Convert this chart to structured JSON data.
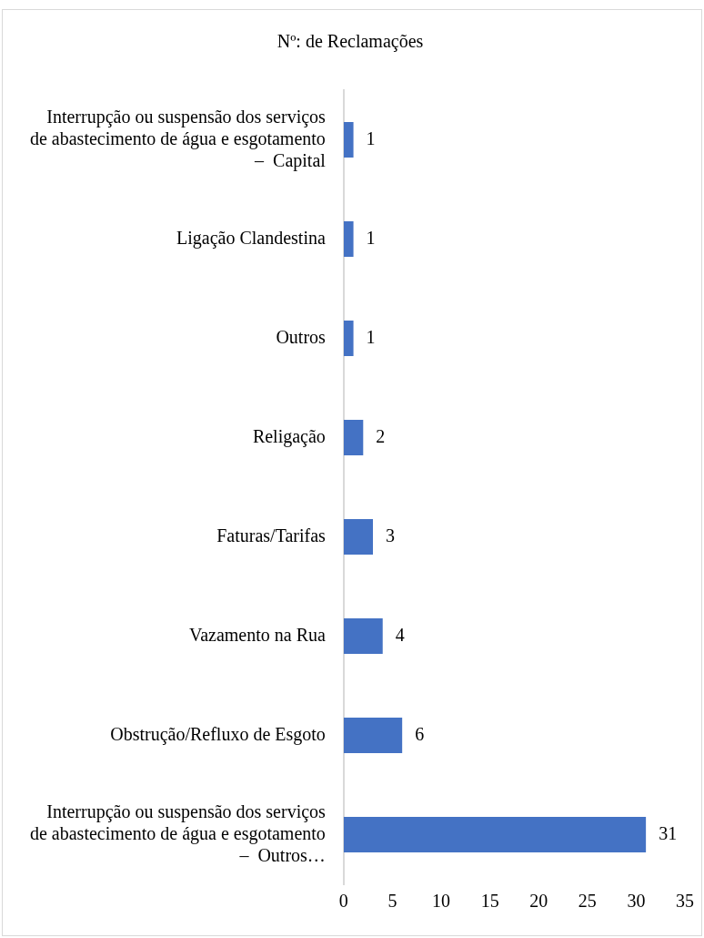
{
  "chart_data": {
    "type": "bar",
    "orientation": "horizontal",
    "title": "Nº: de Reclamações",
    "categories": [
      "Interrupção ou suspensão dos serviços de abastecimento de água e esgotamento –  Capital",
      "Ligação Clandestina",
      "Outros",
      "Religação",
      "Faturas/Tarifas",
      "Vazamento na Rua",
      "Obstrução/Refluxo de Esgoto",
      "Interrupção ou suspensão dos serviços de abastecimento de água e esgotamento –  Outros…"
    ],
    "values": [
      1,
      1,
      1,
      2,
      3,
      4,
      6,
      31
    ],
    "color": "#4472c4",
    "xlim": [
      0,
      35
    ],
    "xticks": [
      0,
      5,
      10,
      15,
      20,
      25,
      30,
      35
    ],
    "grid": false,
    "legend": false,
    "data_labels": true
  }
}
